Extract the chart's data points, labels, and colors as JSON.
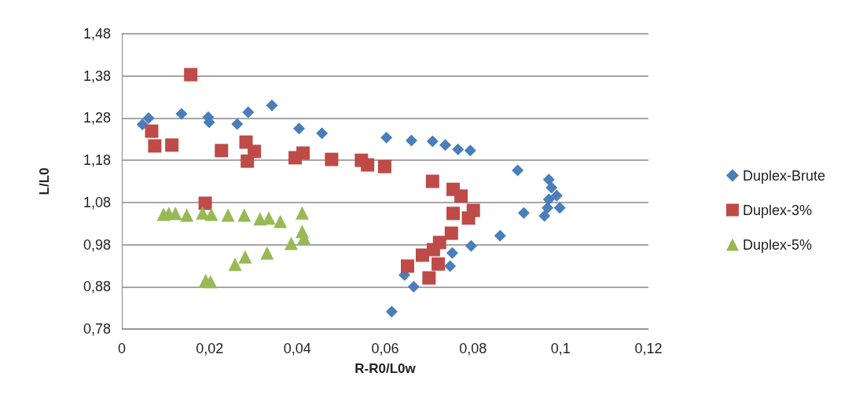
{
  "chart_data": {
    "type": "scatter",
    "xlabel": "R-R0/L0w",
    "ylabel": "L/L0",
    "grid": "y",
    "legend": "right",
    "xlim": [
      0,
      0.12
    ],
    "ylim": [
      0.78,
      1.48
    ],
    "xticks": [
      0,
      {
        "value": 0.02,
        "label": "0,02"
      },
      {
        "value": 0.04,
        "label": "0,04"
      },
      {
        "value": 0.06,
        "label": "0,06"
      },
      {
        "value": 0.08,
        "label": "0,08"
      },
      {
        "value": 0.1,
        "label": "0,1"
      },
      {
        "value": 0.12,
        "label": "0,12"
      }
    ],
    "yticks": [
      {
        "value": 0.78,
        "label": "0,78"
      },
      {
        "value": 0.88,
        "label": "0,88"
      },
      {
        "value": 0.98,
        "label": "0,98"
      },
      {
        "value": 1.08,
        "label": "1,08"
      },
      {
        "value": 1.18,
        "label": "1,18"
      },
      {
        "value": 1.28,
        "label": "1,28"
      },
      {
        "value": 1.38,
        "label": "1,38"
      },
      {
        "value": 1.48,
        "label": "1,48"
      }
    ],
    "series": [
      {
        "name": "Duplex-Brute",
        "color": "#4a7ebb",
        "marker": "diamond",
        "x": [
          0.0047,
          0.0061,
          0.0136,
          0.0197,
          0.0199,
          0.0263,
          0.0288,
          0.0342,
          0.0404,
          0.0456,
          0.0603,
          0.066,
          0.0708,
          0.0737,
          0.0766,
          0.0794,
          0.0902,
          0.0973,
          0.0979,
          0.0991,
          0.0973,
          0.0998,
          0.097,
          0.0963,
          0.0916,
          0.0862,
          0.0796,
          0.0753,
          0.0748,
          0.0644,
          0.0665,
          0.0615
        ],
        "values": [
          1.265,
          1.28,
          1.29,
          1.282,
          1.27,
          1.266,
          1.294,
          1.31,
          1.255,
          1.244,
          1.234,
          1.227,
          1.225,
          1.216,
          1.206,
          1.203,
          1.156,
          1.134,
          1.115,
          1.096,
          1.087,
          1.067,
          1.067,
          1.048,
          1.055,
          1.001,
          0.977,
          0.96,
          0.929,
          0.908,
          0.88,
          0.821
        ]
      },
      {
        "name": "Duplex-3%",
        "color": "#be4b48",
        "marker": "square",
        "x": [
          0.0157,
          0.0068,
          0.0075,
          0.0114,
          0.0227,
          0.0283,
          0.0302,
          0.0286,
          0.0395,
          0.0413,
          0.0478,
          0.0546,
          0.056,
          0.0599,
          0.019,
          0.0708,
          0.0755,
          0.0773,
          0.0775,
          0.0801,
          0.0755,
          0.079,
          0.0751,
          0.0724,
          0.071,
          0.0685,
          0.0721,
          0.0651,
          0.07
        ],
        "values": [
          1.383,
          1.249,
          1.214,
          1.216,
          1.203,
          1.223,
          1.201,
          1.178,
          1.186,
          1.197,
          1.182,
          1.18,
          1.169,
          1.165,
          1.078,
          1.13,
          1.111,
          1.095,
          null,
          1.061,
          1.054,
          1.043,
          1.007,
          0.985,
          0.968,
          0.955,
          0.934,
          0.929,
          0.901
        ]
      },
      {
        "name": "Duplex-5%",
        "color": "#98b954",
        "marker": "triangle",
        "x": [
          0.0095,
          0.0107,
          0.0122,
          0.0148,
          0.0184,
          0.0204,
          0.0242,
          0.0279,
          0.0315,
          0.0335,
          0.0361,
          0.0411,
          0.0411,
          0.0415,
          0.0386,
          0.0331,
          0.0281,
          0.0258,
          0.0191,
          0.0202
        ],
        "values": [
          1.052,
          1.054,
          1.054,
          1.05,
          1.055,
          1.052,
          1.05,
          1.05,
          1.041,
          1.043,
          1.035,
          1.055,
          1.011,
          0.996,
          0.983,
          0.96,
          0.951,
          0.933,
          0.895,
          0.892
        ]
      }
    ]
  }
}
